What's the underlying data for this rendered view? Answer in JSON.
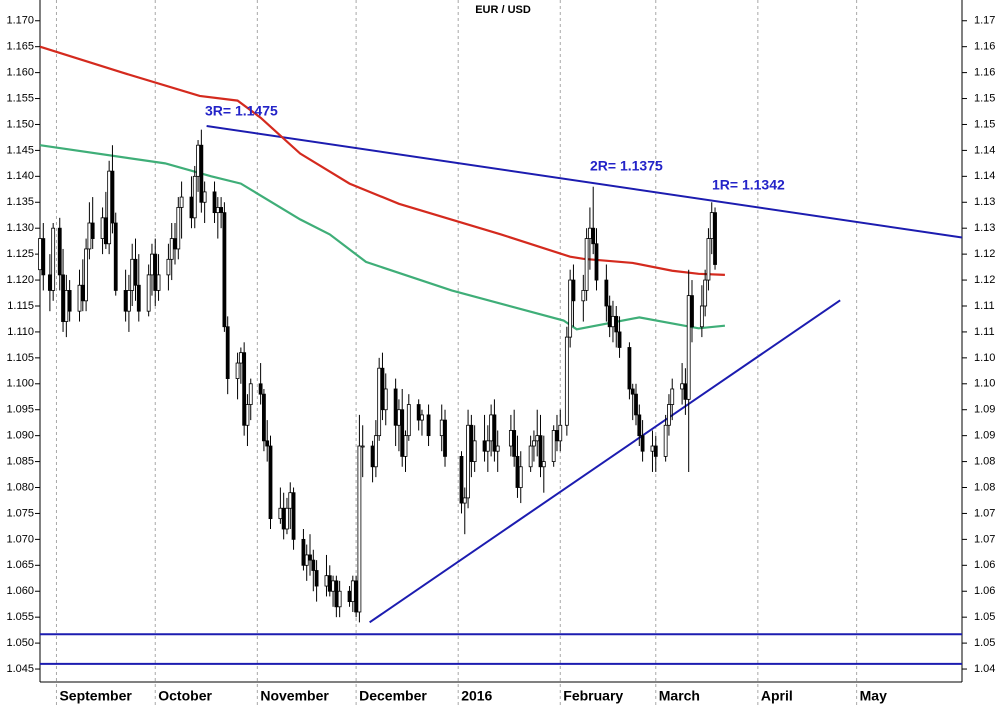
{
  "chart_data": {
    "type": "candlestick",
    "title": "EUR / USD",
    "xlim": [
      -5,
      275
    ],
    "ylim": [
      1.0425,
      1.174
    ],
    "y2lim": [
      1.0425,
      1.174
    ],
    "xticks": [
      {
        "value": 0,
        "label": "September"
      },
      {
        "value": 30,
        "label": "October"
      },
      {
        "value": 61,
        "label": "November"
      },
      {
        "value": 91,
        "label": "December"
      },
      {
        "value": 122,
        "label": "2016"
      },
      {
        "value": 153,
        "label": "February"
      },
      {
        "value": 182,
        "label": "March"
      },
      {
        "value": 213,
        "label": "April"
      },
      {
        "value": 243,
        "label": "May"
      }
    ],
    "yticks": [
      {
        "value": 1.17,
        "label": "1.170"
      },
      {
        "value": 1.165,
        "label": "1.165"
      },
      {
        "value": 1.16,
        "label": "1.160"
      },
      {
        "value": 1.155,
        "label": "1.155"
      },
      {
        "value": 1.15,
        "label": "1.150"
      },
      {
        "value": 1.145,
        "label": "1.145"
      },
      {
        "value": 1.14,
        "label": "1.140"
      },
      {
        "value": 1.135,
        "label": "1.135"
      },
      {
        "value": 1.13,
        "label": "1.130"
      },
      {
        "value": 1.125,
        "label": "1.125"
      },
      {
        "value": 1.12,
        "label": "1.120"
      },
      {
        "value": 1.115,
        "label": "1.115"
      },
      {
        "value": 1.11,
        "label": "1.110"
      },
      {
        "value": 1.105,
        "label": "1.105"
      },
      {
        "value": 1.1,
        "label": "1.100"
      },
      {
        "value": 1.095,
        "label": "1.095"
      },
      {
        "value": 1.09,
        "label": "1.090"
      },
      {
        "value": 1.085,
        "label": "1.085"
      },
      {
        "value": 1.08,
        "label": "1.080"
      },
      {
        "value": 1.075,
        "label": "1.075"
      },
      {
        "value": 1.07,
        "label": "1.070"
      },
      {
        "value": 1.065,
        "label": "1.065"
      },
      {
        "value": 1.06,
        "label": "1.060"
      },
      {
        "value": 1.055,
        "label": "1.055"
      },
      {
        "value": 1.05,
        "label": "1.050"
      },
      {
        "value": 1.045,
        "label": "1.045"
      }
    ],
    "y2ticks": [
      1.17,
      {
        "value": 1.165,
        "label": "1.16"
      },
      {
        "value": 1.16,
        "label": "1.16"
      },
      {
        "value": 1.155,
        "label": "1.15"
      },
      {
        "value": 1.15,
        "label": "1.15"
      },
      {
        "value": 1.145,
        "label": "1.14"
      },
      {
        "value": 1.14,
        "label": "1.14"
      },
      {
        "value": 1.135,
        "label": "1.13"
      },
      {
        "value": 1.13,
        "label": "1.13"
      },
      {
        "value": 1.125,
        "label": "1.12"
      },
      {
        "value": 1.12,
        "label": "1.12"
      },
      {
        "value": 1.115,
        "label": "1.11"
      },
      {
        "value": 1.11,
        "label": "1.11"
      },
      {
        "value": 1.105,
        "label": "1.10"
      },
      {
        "value": 1.1,
        "label": "1.10"
      },
      {
        "value": 1.095,
        "label": "1.09"
      },
      {
        "value": 1.09,
        "label": "1.09"
      },
      {
        "value": 1.085,
        "label": "1.08"
      },
      {
        "value": 1.08,
        "label": "1.08"
      },
      {
        "value": 1.075,
        "label": "1.07"
      },
      {
        "value": 1.07,
        "label": "1.07"
      },
      {
        "value": 1.065,
        "label": "1.06"
      },
      {
        "value": 1.06,
        "label": "1.06"
      },
      {
        "value": 1.055,
        "label": "1.05"
      },
      {
        "value": 1.05,
        "label": "1.05"
      },
      {
        "value": 1.045,
        "label": "1.04"
      }
    ],
    "grid": true,
    "up_color": "#ffffff",
    "down_color": "#000000",
    "x": [
      -5,
      -4,
      -2,
      -1,
      1,
      2,
      3,
      4,
      7,
      8,
      9,
      10,
      11,
      14,
      15,
      16,
      17,
      18,
      21,
      22,
      23,
      24,
      25,
      28,
      29,
      30,
      31,
      34,
      35,
      36,
      37,
      38,
      41,
      42,
      43,
      44,
      45,
      48,
      49,
      50,
      51,
      52,
      55,
      56,
      57,
      58,
      59,
      62,
      63,
      64,
      65,
      68,
      69,
      70,
      71,
      72,
      75,
      76,
      77,
      78,
      79,
      82,
      83,
      84,
      85,
      86,
      89,
      90,
      91,
      92,
      93,
      96,
      97,
      98,
      99,
      100,
      103,
      104,
      105,
      106,
      107,
      110,
      111,
      113,
      117,
      118,
      123,
      124,
      125,
      126,
      127,
      130,
      131,
      132,
      133,
      134,
      138,
      139,
      140,
      141,
      144,
      145,
      146,
      147,
      148,
      151,
      152,
      153,
      155,
      156,
      157,
      160,
      161,
      162,
      163,
      164,
      167,
      168,
      169,
      170,
      171,
      174,
      175,
      176,
      177,
      178,
      181,
      182,
      185,
      186,
      187,
      190,
      191,
      192,
      193,
      196,
      197,
      198,
      199,
      200
    ],
    "open": [
      1.122,
      1.128,
      1.121,
      1.118,
      1.13,
      1.121,
      1.112,
      1.118,
      1.114,
      1.119,
      1.116,
      1.126,
      1.131,
      1.128,
      1.132,
      1.127,
      1.141,
      1.131,
      1.118,
      1.114,
      1.118,
      1.124,
      1.119,
      1.114,
      1.121,
      1.125,
      1.118,
      1.121,
      1.124,
      1.128,
      1.126,
      1.134,
      1.136,
      1.132,
      1.14,
      1.146,
      1.135,
      1.137,
      1.133,
      1.134,
      1.133,
      1.111,
      1.101,
      1.104,
      1.106,
      1.092,
      1.096,
      1.1,
      1.098,
      1.089,
      1.088,
      1.074,
      1.076,
      1.072,
      1.076,
      1.079,
      1.07,
      1.065,
      1.067,
      1.066,
      1.064,
      1.061,
      1.063,
      1.06,
      1.062,
      1.057,
      1.06,
      1.058,
      1.062,
      1.056,
      1.088,
      1.088,
      1.084,
      1.09,
      1.103,
      1.095,
      1.099,
      1.092,
      1.095,
      1.086,
      1.09,
      1.096,
      1.093,
      1.094,
      1.09,
      1.093,
      1.086,
      1.077,
      1.078,
      1.092,
      1.085,
      1.089,
      1.087,
      1.089,
      1.094,
      1.087,
      1.088,
      1.091,
      1.086,
      1.08,
      1.084,
      1.088,
      1.089,
      1.09,
      1.084,
      1.085,
      1.091,
      1.089,
      1.092,
      1.109,
      1.12,
      1.116,
      1.118,
      1.128,
      1.13,
      1.127,
      1.12,
      1.115,
      1.111,
      1.113,
      1.11,
      1.107,
      1.099,
      1.098,
      1.094,
      1.09,
      1.087,
      1.088,
      1.086,
      1.092,
      1.096,
      1.099,
      1.1,
      1.097,
      1.117,
      1.111,
      1.115,
      1.12,
      1.128,
      1.133
    ],
    "high": [
      1.132,
      1.131,
      1.125,
      1.131,
      1.132,
      1.126,
      1.121,
      1.12,
      1.122,
      1.124,
      1.128,
      1.135,
      1.136,
      1.134,
      1.137,
      1.143,
      1.146,
      1.133,
      1.122,
      1.121,
      1.127,
      1.128,
      1.125,
      1.123,
      1.127,
      1.128,
      1.125,
      1.127,
      1.131,
      1.131,
      1.136,
      1.139,
      1.14,
      1.142,
      1.147,
      1.149,
      1.139,
      1.139,
      1.136,
      1.136,
      1.135,
      1.113,
      1.106,
      1.107,
      1.108,
      1.098,
      1.101,
      1.104,
      1.099,
      1.093,
      1.09,
      1.08,
      1.079,
      1.078,
      1.081,
      1.08,
      1.072,
      1.069,
      1.071,
      1.068,
      1.066,
      1.067,
      1.065,
      1.063,
      1.063,
      1.062,
      1.061,
      1.063,
      1.063,
      1.094,
      1.092,
      1.089,
      1.093,
      1.105,
      1.106,
      1.102,
      1.101,
      1.097,
      1.099,
      1.091,
      1.098,
      1.097,
      1.095,
      1.096,
      1.096,
      1.095,
      1.087,
      1.08,
      1.095,
      1.094,
      1.092,
      1.094,
      1.092,
      1.096,
      1.097,
      1.091,
      1.094,
      1.095,
      1.09,
      1.087,
      1.09,
      1.091,
      1.095,
      1.094,
      1.09,
      1.092,
      1.094,
      1.095,
      1.111,
      1.122,
      1.123,
      1.121,
      1.13,
      1.134,
      1.138,
      1.13,
      1.123,
      1.117,
      1.116,
      1.115,
      1.113,
      1.108,
      1.1,
      1.1,
      1.096,
      1.093,
      1.091,
      1.09,
      1.094,
      1.098,
      1.101,
      1.104,
      1.103,
      1.122,
      1.12,
      1.119,
      1.122,
      1.13,
      1.135,
      1.134
    ],
    "low": [
      1.116,
      1.118,
      1.114,
      1.116,
      1.118,
      1.11,
      1.109,
      1.112,
      1.112,
      1.114,
      1.114,
      1.124,
      1.126,
      1.125,
      1.126,
      1.125,
      1.129,
      1.117,
      1.112,
      1.11,
      1.115,
      1.116,
      1.112,
      1.113,
      1.117,
      1.115,
      1.116,
      1.118,
      1.12,
      1.123,
      1.124,
      1.128,
      1.13,
      1.13,
      1.137,
      1.133,
      1.131,
      1.131,
      1.128,
      1.13,
      1.11,
      1.098,
      1.097,
      1.1,
      1.09,
      1.088,
      1.093,
      1.096,
      1.087,
      1.085,
      1.072,
      1.073,
      1.07,
      1.071,
      1.072,
      1.068,
      1.064,
      1.062,
      1.063,
      1.06,
      1.058,
      1.059,
      1.059,
      1.057,
      1.055,
      1.055,
      1.057,
      1.056,
      1.055,
      1.054,
      1.082,
      1.081,
      1.082,
      1.089,
      1.093,
      1.092,
      1.088,
      1.087,
      1.084,
      1.083,
      1.089,
      1.091,
      1.09,
      1.088,
      1.087,
      1.084,
      1.075,
      1.071,
      1.076,
      1.082,
      1.083,
      1.085,
      1.083,
      1.086,
      1.085,
      1.083,
      1.086,
      1.084,
      1.078,
      1.077,
      1.083,
      1.085,
      1.086,
      1.082,
      1.079,
      1.084,
      1.087,
      1.087,
      1.09,
      1.107,
      1.111,
      1.112,
      1.116,
      1.122,
      1.125,
      1.118,
      1.112,
      1.109,
      1.108,
      1.107,
      1.105,
      1.097,
      1.093,
      1.092,
      1.088,
      1.085,
      1.083,
      1.083,
      1.085,
      1.09,
      1.093,
      1.096,
      1.094,
      1.083,
      1.108,
      1.109,
      1.113,
      1.118,
      1.125,
      1.122
    ],
    "close": [
      1.128,
      1.121,
      1.118,
      1.13,
      1.121,
      1.112,
      1.118,
      1.114,
      1.119,
      1.116,
      1.126,
      1.131,
      1.128,
      1.132,
      1.127,
      1.141,
      1.131,
      1.118,
      1.114,
      1.118,
      1.124,
      1.119,
      1.114,
      1.121,
      1.125,
      1.118,
      1.121,
      1.124,
      1.128,
      1.126,
      1.134,
      1.136,
      1.132,
      1.14,
      1.146,
      1.135,
      1.137,
      1.133,
      1.134,
      1.133,
      1.111,
      1.101,
      1.104,
      1.106,
      1.092,
      1.096,
      1.1,
      1.098,
      1.089,
      1.088,
      1.074,
      1.076,
      1.072,
      1.076,
      1.079,
      1.07,
      1.065,
      1.067,
      1.066,
      1.064,
      1.061,
      1.063,
      1.06,
      1.062,
      1.057,
      1.06,
      1.058,
      1.062,
      1.056,
      1.088,
      1.088,
      1.084,
      1.09,
      1.103,
      1.095,
      1.099,
      1.092,
      1.095,
      1.086,
      1.09,
      1.096,
      1.093,
      1.094,
      1.09,
      1.093,
      1.086,
      1.077,
      1.078,
      1.092,
      1.085,
      1.089,
      1.087,
      1.089,
      1.094,
      1.087,
      1.088,
      1.091,
      1.086,
      1.08,
      1.084,
      1.088,
      1.089,
      1.09,
      1.084,
      1.085,
      1.091,
      1.089,
      1.092,
      1.109,
      1.12,
      1.116,
      1.118,
      1.128,
      1.13,
      1.127,
      1.12,
      1.115,
      1.111,
      1.113,
      1.11,
      1.107,
      1.099,
      1.098,
      1.094,
      1.09,
      1.087,
      1.088,
      1.086,
      1.092,
      1.096,
      1.099,
      1.1,
      1.097,
      1.117,
      1.111,
      1.115,
      1.12,
      1.128,
      1.133,
      1.123
    ],
    "moving_averages": [
      {
        "color": "#d42a1e",
        "x": [
          -5,
          20,
          43.5,
          55,
          62,
          74,
          89,
          104,
          135,
          156,
          160,
          175,
          187,
          195,
          203
        ],
        "values": [
          1.165,
          1.16,
          1.1555,
          1.1546,
          1.1513,
          1.1444,
          1.1386,
          1.1347,
          1.1288,
          1.1245,
          1.1241,
          1.1233,
          1.1218,
          1.1212,
          1.121
        ]
      },
      {
        "color": "#3fae78",
        "x": [
          -5,
          33,
          47,
          56,
          74,
          83,
          94,
          120,
          154,
          158,
          177,
          195,
          203
        ],
        "values": [
          1.146,
          1.1425,
          1.14,
          1.1386,
          1.1317,
          1.1288,
          1.1235,
          1.118,
          1.1122,
          1.1105,
          1.1128,
          1.1107,
          1.1112
        ]
      }
    ],
    "line_color": "#1c1cb0",
    "lines": [
      {
        "x": [
          45.6,
          275
        ],
        "y": [
          1.1497,
          1.1282
        ]
      },
      {
        "x": [
          95.1,
          238
        ],
        "y": [
          1.054,
          1.1161
        ]
      },
      {
        "x": [
          -5,
          275
        ],
        "y": [
          1.0517,
          1.0517
        ]
      },
      {
        "x": [
          -5,
          275
        ],
        "y": [
          1.046,
          1.046
        ]
      }
    ],
    "annotation_color": "#2323c8",
    "annotations": [
      "3R= 1.1475",
      "2R= 1.1375",
      "1R= 1.1342"
    ]
  }
}
